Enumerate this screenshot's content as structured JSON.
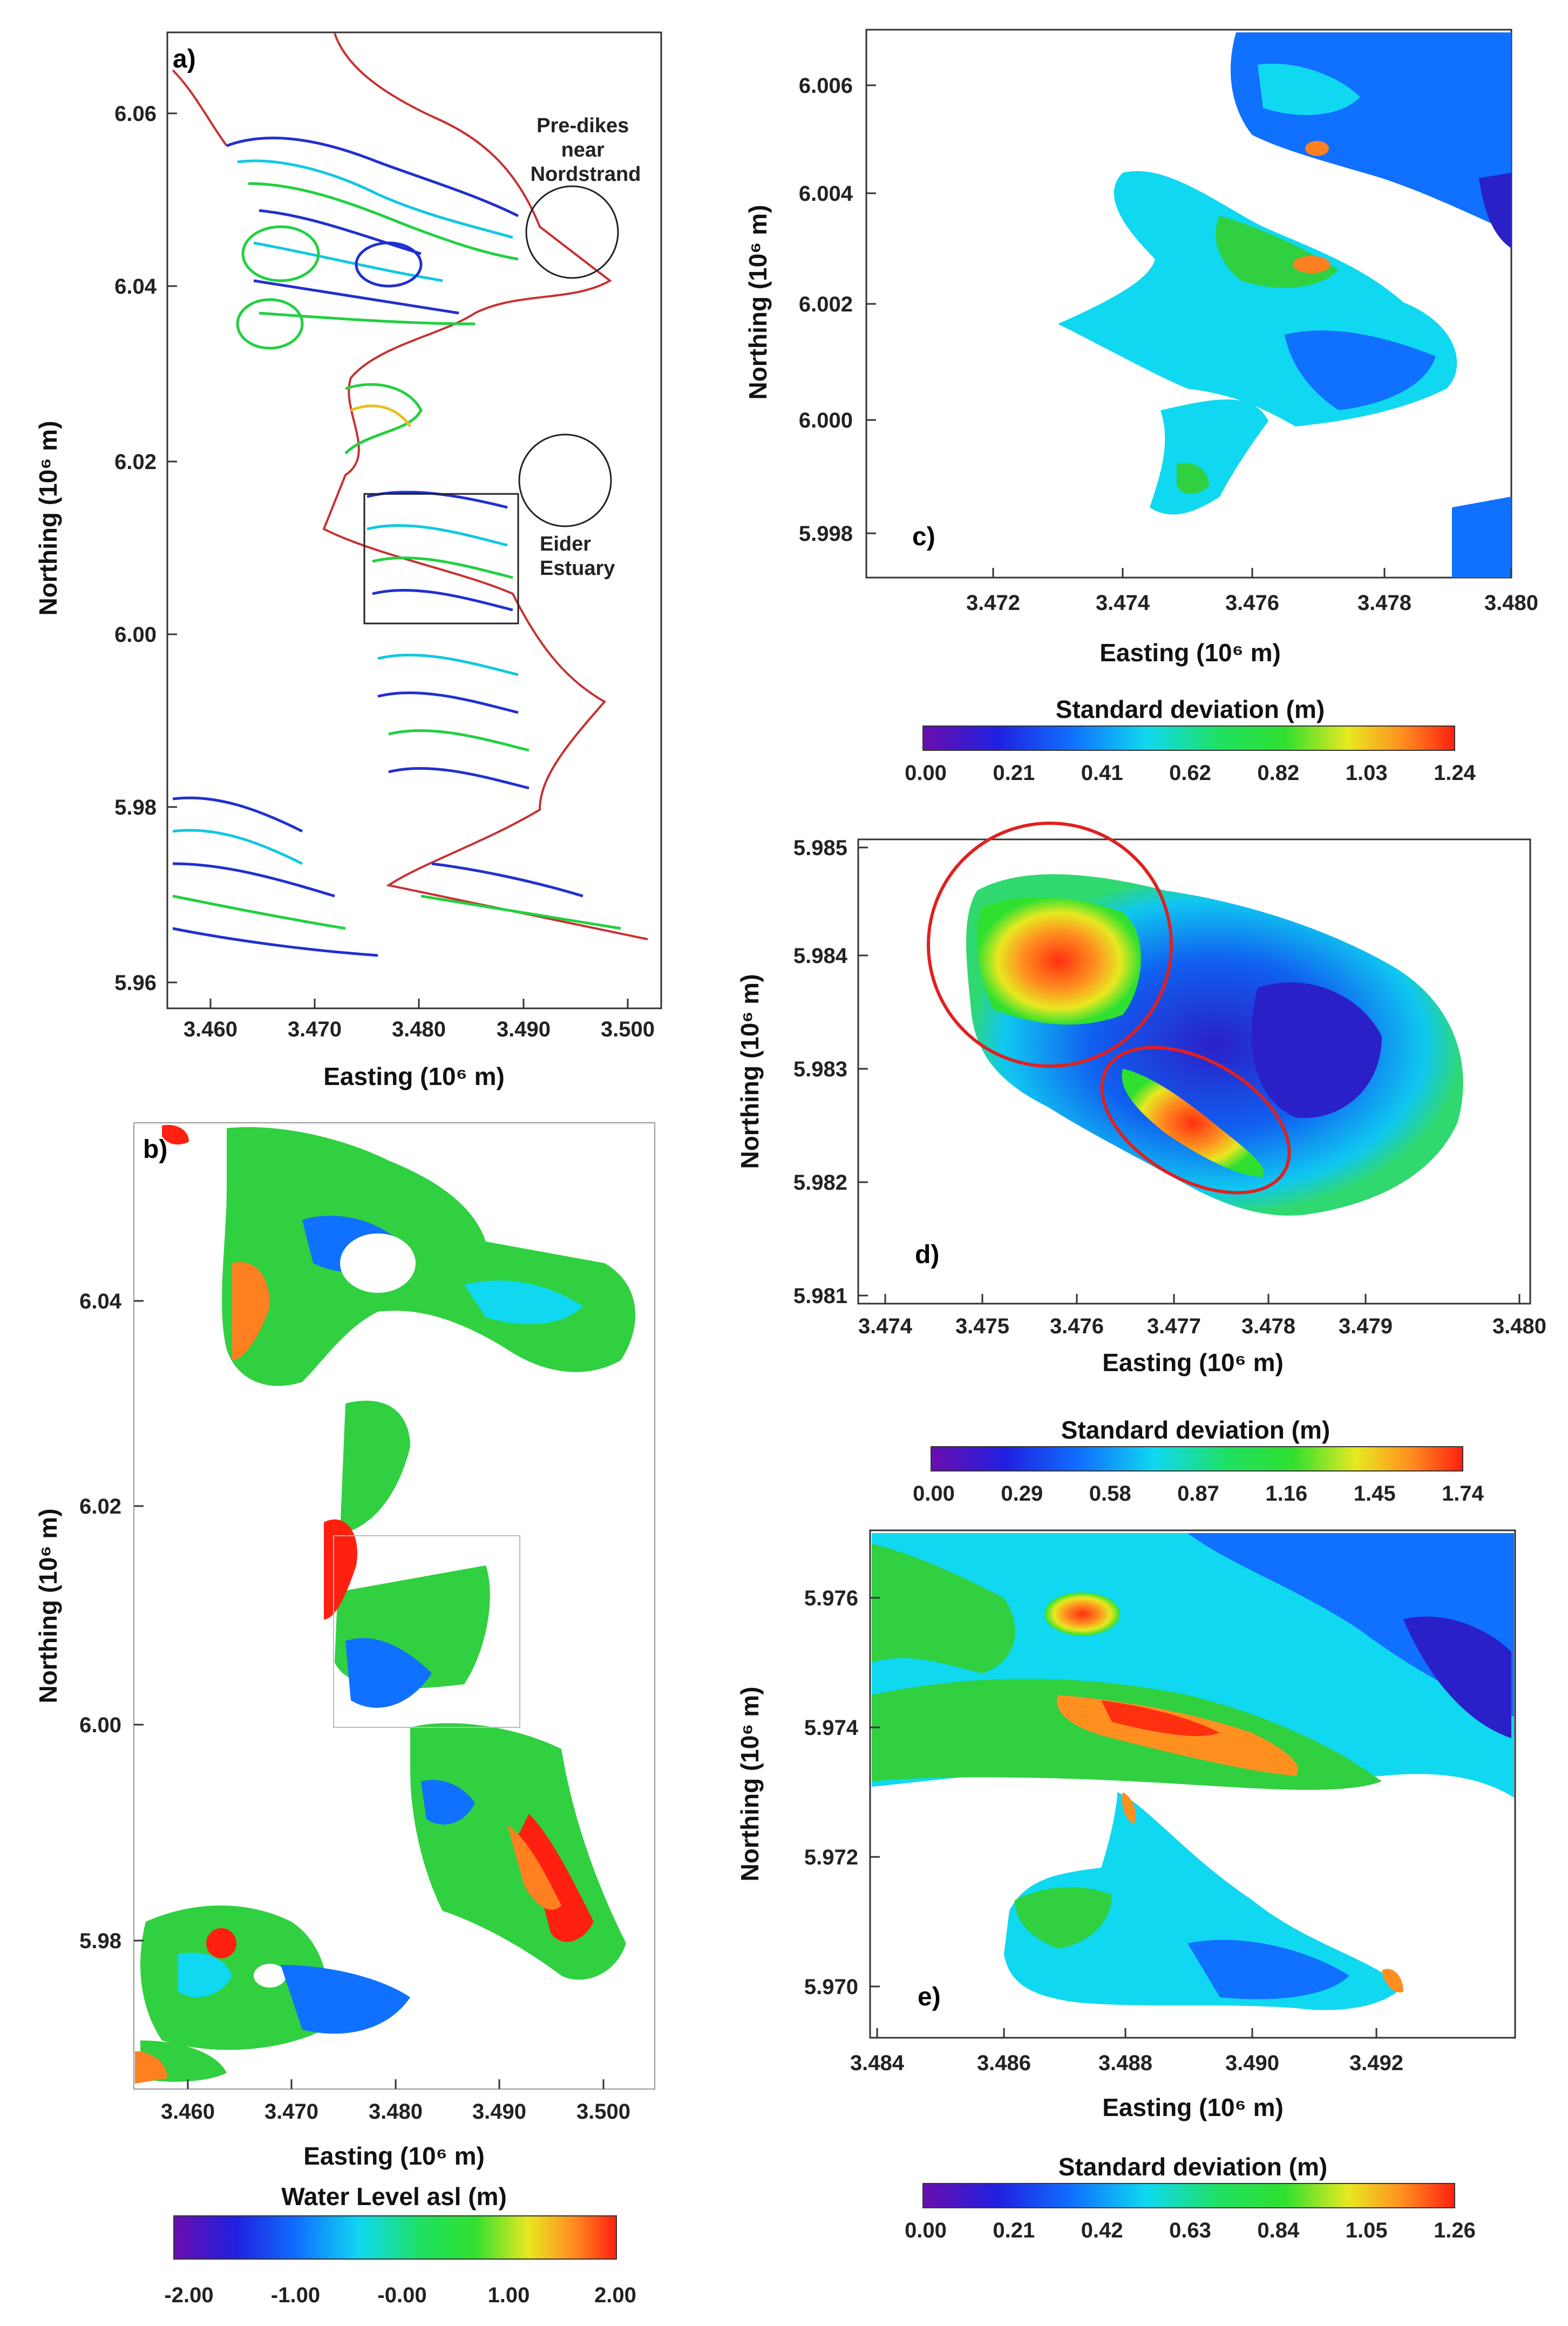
{
  "figure": {
    "panels": [
      {
        "id": "a",
        "label": "a)",
        "xlabel": "Easting (10⁶ m)",
        "ylabel": "Northing (10⁶ m)",
        "xticks": [
          "3.460",
          "3.470",
          "3.480",
          "3.490",
          "3.500"
        ],
        "yticks": [
          "6.06",
          "6.04",
          "6.02",
          "6.00",
          "5.98",
          "5.96"
        ],
        "annotations": [
          {
            "id": "pre-dikes",
            "lines": [
              "Pre-dikes",
              "near",
              "Nordstrand"
            ]
          },
          {
            "id": "eider",
            "lines": [
              "Eider",
              "Estuary"
            ]
          }
        ]
      },
      {
        "id": "b",
        "label": "b)",
        "xlabel": "Easting (10⁶ m)",
        "ylabel": "Northing (10⁶ m)",
        "xticks": [
          "3.460",
          "3.470",
          "3.480",
          "3.490",
          "3.500"
        ],
        "yticks": [
          "6.04",
          "6.02",
          "6.00",
          "5.98"
        ],
        "colorbar": {
          "title": "Water Level asl (m)",
          "ticks": [
            "-2.00",
            "-1.00",
            "-0.00",
            "1.00",
            "2.00"
          ]
        }
      },
      {
        "id": "c",
        "label": "c)",
        "xlabel": "Easting (10⁶ m)",
        "ylabel": "Northing (10⁶ m)",
        "xticks": [
          "3.472",
          "3.474",
          "3.476",
          "3.478",
          "3.480"
        ],
        "yticks": [
          "6.006",
          "6.004",
          "6.002",
          "6.000",
          "5.998"
        ],
        "colorbar": {
          "title": "Standard deviation (m)",
          "ticks": [
            "0.00",
            "0.21",
            "0.41",
            "0.62",
            "0.82",
            "1.03",
            "1.24"
          ]
        }
      },
      {
        "id": "d",
        "label": "d)",
        "xlabel": "Easting (10⁶ m)",
        "ylabel": "Northing (10⁶ m)",
        "xticks": [
          "3.474",
          "3.475",
          "3.476",
          "3.477",
          "3.478",
          "3.479",
          "3.480"
        ],
        "yticks": [
          "5.985",
          "5.984",
          "5.983",
          "5.982",
          "5.981"
        ],
        "colorbar": {
          "title": "Standard deviation (m)",
          "ticks": [
            "0.00",
            "0.29",
            "0.58",
            "0.87",
            "1.16",
            "1.45",
            "1.74"
          ]
        }
      },
      {
        "id": "e",
        "label": "e)",
        "xlabel": "Easting (10⁶ m)",
        "ylabel": "Northing (10⁶ m)",
        "xticks": [
          "3.484",
          "3.486",
          "3.488",
          "3.490",
          "3.492"
        ],
        "yticks": [
          "5.976",
          "5.974",
          "5.972",
          "5.970"
        ],
        "colorbar": {
          "title": "Standard deviation (m)",
          "ticks": [
            "0.00",
            "0.21",
            "0.42",
            "0.63",
            "0.84",
            "1.05",
            "1.26"
          ]
        }
      }
    ],
    "colormap": [
      "#6a0dad",
      "#2020e0",
      "#1070ff",
      "#10d8f0",
      "#20e060",
      "#30e030",
      "#e8e820",
      "#ff9020",
      "#ff2010"
    ]
  }
}
